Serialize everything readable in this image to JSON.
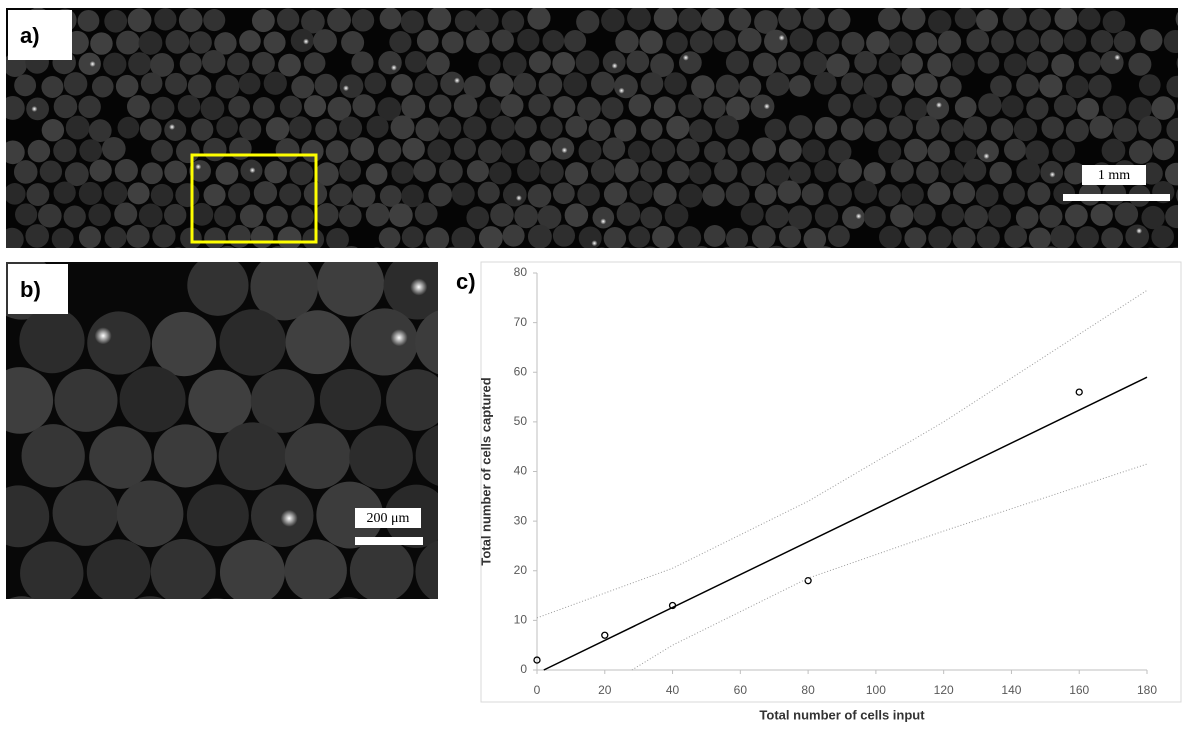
{
  "panels": {
    "a": {
      "label": "a)",
      "scale_bar": "1 mm"
    },
    "b": {
      "label": "b)",
      "scale_bar": "200 μm"
    },
    "c": {
      "label": "c)"
    }
  },
  "chart_data": {
    "type": "scatter",
    "x_label": "Total number of cells input",
    "y_label": "Total number of cells captured",
    "xlim": [
      0,
      180
    ],
    "ylim": [
      0,
      80
    ],
    "xticks": [
      0,
      20,
      40,
      60,
      80,
      100,
      120,
      140,
      160,
      180
    ],
    "yticks": [
      0,
      10,
      20,
      30,
      40,
      50,
      60,
      70,
      80
    ],
    "series": [
      {
        "type": "scatter",
        "color": "#000000",
        "x": [
          0,
          20,
          40,
          80,
          160
        ],
        "values": [
          2,
          7,
          13,
          18,
          56
        ]
      },
      {
        "type": "line",
        "color": "#000000",
        "x": [
          2,
          180
        ],
        "values": [
          0,
          59
        ]
      },
      {
        "type": "band",
        "color": "#9a9a9a",
        "x": [
          0,
          40,
          80,
          120,
          180
        ],
        "values": [
          10.5,
          20.5,
          34,
          50,
          76.5
        ]
      },
      {
        "type": "band",
        "color": "#9a9a9a",
        "x": [
          28,
          40,
          80,
          120,
          180
        ],
        "values": [
          0,
          5,
          18.5,
          28,
          41.5
        ]
      }
    ]
  }
}
